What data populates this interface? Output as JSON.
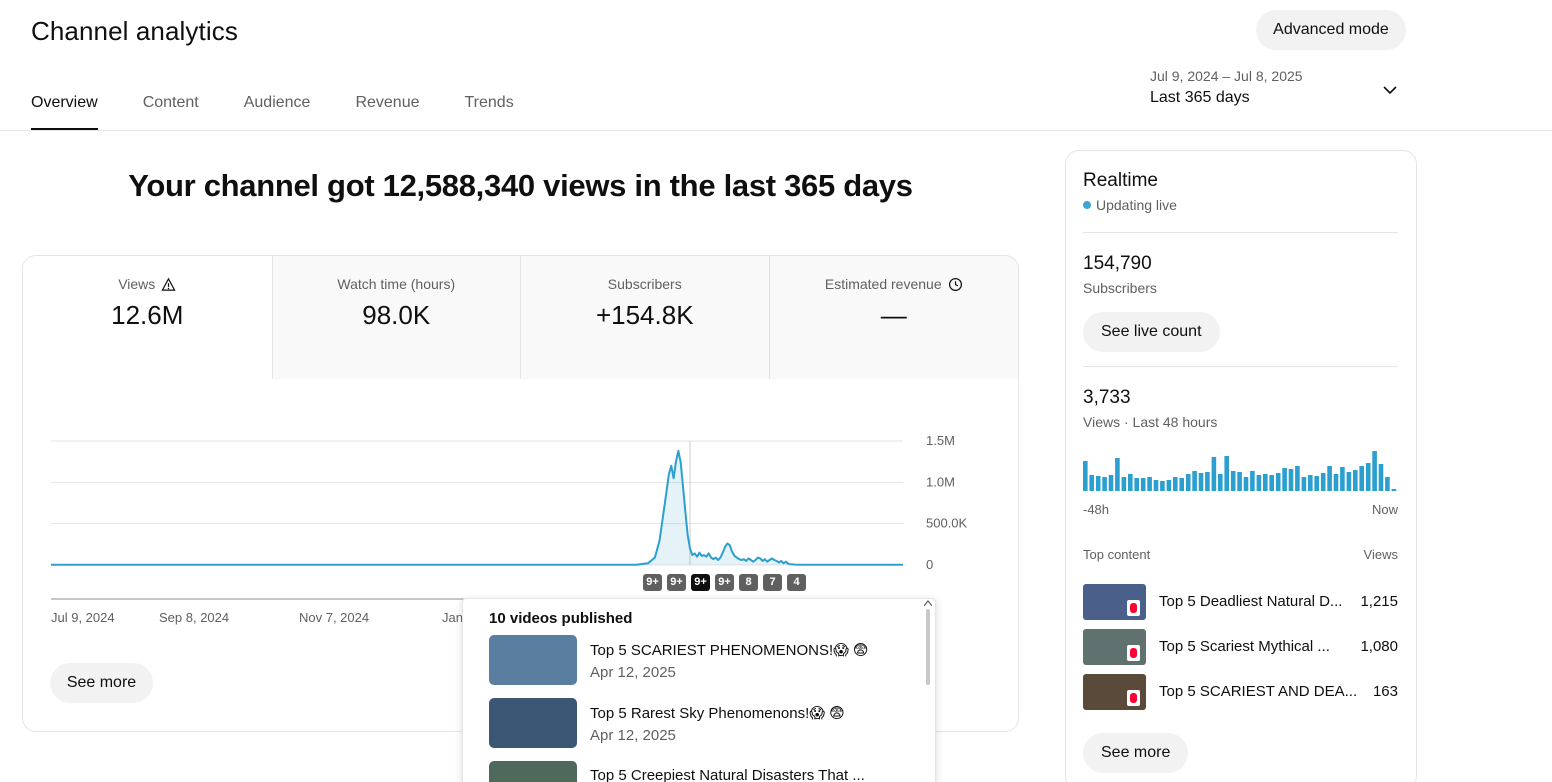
{
  "header": {
    "title": "Channel analytics",
    "advanced_mode": "Advanced mode"
  },
  "tabs": [
    {
      "label": "Overview",
      "active": true
    },
    {
      "label": "Content"
    },
    {
      "label": "Audience"
    },
    {
      "label": "Revenue"
    },
    {
      "label": "Trends"
    }
  ],
  "date_range": {
    "range": "Jul 9, 2024 – Jul 8, 2025",
    "label": "Last 365 days"
  },
  "headline": "Your channel got 12,588,340 views in the last 365 days",
  "metrics": [
    {
      "label": "Views",
      "value": "12.6M",
      "icon": "warning-icon"
    },
    {
      "label": "Watch time (hours)",
      "value": "98.0K"
    },
    {
      "label": "Subscribers",
      "value": "+154.8K"
    },
    {
      "label": "Estimated revenue",
      "value": "—",
      "icon": "clock-icon"
    }
  ],
  "chart_data": {
    "type": "line",
    "title": "",
    "xlabel": "",
    "ylabel": "",
    "x_start": "Jul 9, 2024",
    "x_end": "Jul 8, 2025",
    "x_ticks": [
      "Jul 9, 2024",
      "Sep 8, 2024",
      "Nov 7, 2024",
      "Jan"
    ],
    "y_ticks": [
      "0",
      "500.0K",
      "1.0M",
      "1.5M"
    ],
    "ylim": [
      0,
      1500000
    ],
    "color": "#2ba0cf",
    "points_day_value": [
      [
        0,
        2000
      ],
      [
        240,
        2000
      ],
      [
        250,
        3000
      ],
      [
        255,
        20000
      ],
      [
        258,
        90000
      ],
      [
        260,
        300000
      ],
      [
        262,
        700000
      ],
      [
        264,
        1100000
      ],
      [
        265,
        1200000
      ],
      [
        266,
        1050000
      ],
      [
        267,
        1250000
      ],
      [
        268,
        1380000
      ],
      [
        269,
        1250000
      ],
      [
        270,
        950000
      ],
      [
        271,
        650000
      ],
      [
        272,
        360000
      ],
      [
        273,
        200000
      ],
      [
        274,
        120000
      ],
      [
        275,
        140000
      ],
      [
        276,
        100000
      ],
      [
        277,
        150000
      ],
      [
        278,
        110000
      ],
      [
        279,
        120000
      ],
      [
        280,
        100000
      ],
      [
        281,
        140000
      ],
      [
        282,
        90000
      ],
      [
        283,
        70000
      ],
      [
        284,
        90000
      ],
      [
        285,
        60000
      ],
      [
        286,
        90000
      ],
      [
        287,
        150000
      ],
      [
        288,
        220000
      ],
      [
        289,
        260000
      ],
      [
        290,
        240000
      ],
      [
        291,
        160000
      ],
      [
        292,
        110000
      ],
      [
        293,
        90000
      ],
      [
        294,
        70000
      ],
      [
        295,
        60000
      ],
      [
        296,
        70000
      ],
      [
        297,
        50000
      ],
      [
        298,
        80000
      ],
      [
        299,
        60000
      ],
      [
        300,
        40000
      ],
      [
        301,
        60000
      ],
      [
        302,
        90000
      ],
      [
        303,
        80000
      ],
      [
        304,
        50000
      ],
      [
        305,
        70000
      ],
      [
        306,
        40000
      ],
      [
        307,
        60000
      ],
      [
        308,
        80000
      ],
      [
        309,
        60000
      ],
      [
        310,
        50000
      ],
      [
        311,
        30000
      ],
      [
        312,
        50000
      ],
      [
        313,
        20000
      ],
      [
        314,
        40000
      ],
      [
        315,
        15000
      ],
      [
        316,
        10000
      ],
      [
        318,
        5000
      ],
      [
        322,
        2000
      ],
      [
        364,
        2000
      ]
    ],
    "hover_day": 273
  },
  "publish_badges": [
    {
      "label": "9+"
    },
    {
      "label": "9+"
    },
    {
      "label": "9+",
      "active": true
    },
    {
      "label": "9+"
    },
    {
      "label": "8"
    },
    {
      "label": "7"
    },
    {
      "label": "4"
    }
  ],
  "see_more": "See more",
  "popup": {
    "title": "10 videos published",
    "items": [
      {
        "title": "Top 5 SCARIEST PHENOMENONS!😱 😨",
        "date": "Apr 12, 2025",
        "thumb": "#5a7ea0"
      },
      {
        "title": "Top 5 Rarest Sky Phenomenons!😱 😨",
        "date": "Apr 12, 2025",
        "thumb": "#3c5676"
      },
      {
        "title": "Top 5 Creepiest Natural Disasters That ...",
        "date": "",
        "thumb": "#4f6a5a"
      }
    ]
  },
  "realtime": {
    "title": "Realtime",
    "status": "Updating live",
    "subscribers_value": "154,790",
    "subscribers_label": "Subscribers",
    "live_count_button": "See live count",
    "views_value": "3,733",
    "views_label": "Views · Last 48 hours",
    "bar_values": [
      30,
      16,
      15,
      14,
      16,
      33,
      14,
      17,
      13,
      13,
      14,
      11,
      10,
      11,
      14,
      13,
      17,
      20,
      18,
      19,
      34,
      17,
      35,
      20,
      19,
      14,
      20,
      16,
      17,
      16,
      18,
      23,
      22,
      25,
      14,
      16,
      15,
      18,
      25,
      17,
      24,
      19,
      21,
      25,
      28,
      40,
      27,
      14,
      2
    ],
    "axis_left": "-48h",
    "axis_right": "Now",
    "top_content_label": "Top content",
    "views_col_label": "Views",
    "top_content": [
      {
        "title": "Top 5 Deadliest Natural D...",
        "views": "1,215",
        "thumb": "#4a5f8a"
      },
      {
        "title": "Top 5 Scariest Mythical ...",
        "views": "1,080",
        "thumb": "#5f7270"
      },
      {
        "title": "Top 5 SCARIEST AND DEA...",
        "views": "163",
        "thumb": "#5a4a3a"
      }
    ],
    "see_more": "See more"
  }
}
